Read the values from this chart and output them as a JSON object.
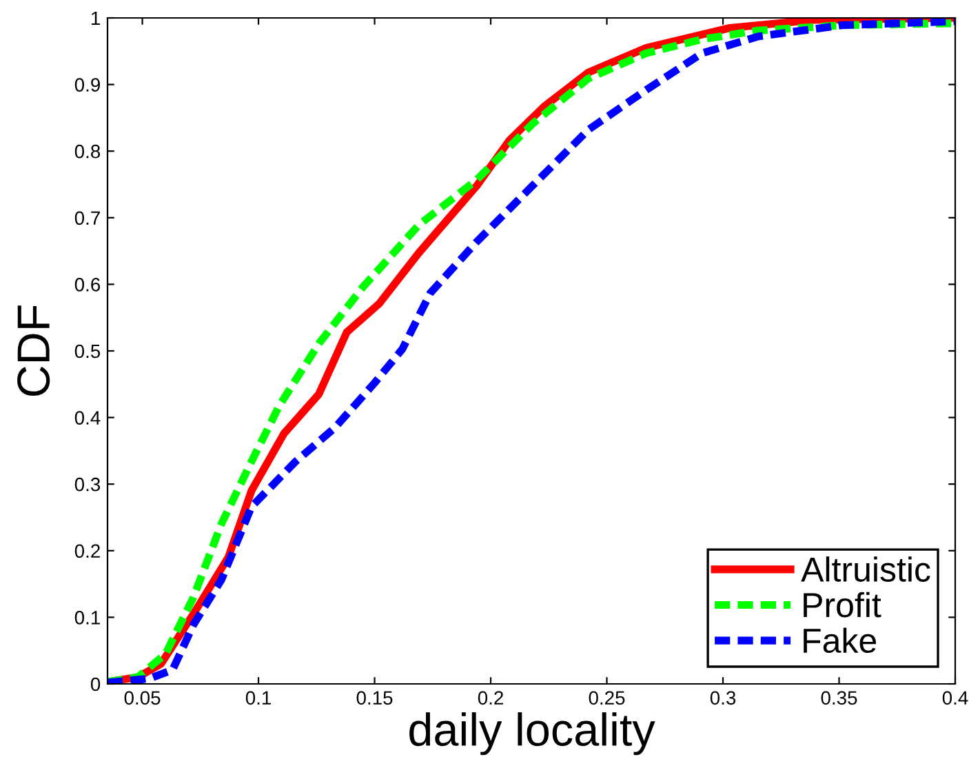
{
  "chart_data": {
    "type": "line",
    "xlabel": "daily locality",
    "ylabel": "CDF",
    "xlim": [
      0.035,
      0.4
    ],
    "xticks": [
      0.05,
      0.1,
      0.15,
      0.2,
      0.25,
      0.3,
      0.35,
      0.4
    ],
    "ylim": [
      0,
      1
    ],
    "yticks": [
      0,
      0.1,
      0.2,
      0.3,
      0.4,
      0.5,
      0.6,
      0.7,
      0.8,
      0.9,
      1
    ],
    "grid": false,
    "legend": "bottom right",
    "marker": "none",
    "series": [
      {
        "name": "Altruistic",
        "color": "#ff0000",
        "line_style": "solid",
        "x": [
          0.035,
          0.048,
          0.058,
          0.072,
          0.087,
          0.097,
          0.111,
          0.126,
          0.138,
          0.152,
          0.169,
          0.194,
          0.208,
          0.223,
          0.242,
          0.267,
          0.303,
          0.339,
          0.4
        ],
        "values": [
          0.003,
          0.01,
          0.03,
          0.105,
          0.19,
          0.29,
          0.376,
          0.435,
          0.528,
          0.571,
          0.647,
          0.748,
          0.816,
          0.867,
          0.918,
          0.955,
          0.985,
          0.997,
          1.0
        ]
      },
      {
        "name": "Profit",
        "color": "#00ff00",
        "line_style": "dashed",
        "x": [
          0.035,
          0.048,
          0.06,
          0.072,
          0.084,
          0.097,
          0.109,
          0.126,
          0.145,
          0.169,
          0.194,
          0.218,
          0.242,
          0.267,
          0.291,
          0.315,
          0.351,
          0.4
        ],
        "values": [
          0.003,
          0.01,
          0.045,
          0.13,
          0.24,
          0.334,
          0.418,
          0.511,
          0.596,
          0.689,
          0.757,
          0.841,
          0.909,
          0.947,
          0.968,
          0.981,
          0.989,
          0.992
        ]
      },
      {
        "name": "Fake",
        "color": "#0000ff",
        "line_style": "dashed",
        "x": [
          0.035,
          0.053,
          0.063,
          0.072,
          0.084,
          0.097,
          0.116,
          0.133,
          0.15,
          0.162,
          0.174,
          0.194,
          0.218,
          0.242,
          0.267,
          0.291,
          0.315,
          0.351,
          0.4
        ],
        "values": [
          0.002,
          0.008,
          0.021,
          0.089,
          0.156,
          0.266,
          0.334,
          0.385,
          0.452,
          0.503,
          0.587,
          0.664,
          0.748,
          0.832,
          0.892,
          0.947,
          0.972,
          0.989,
          0.995
        ]
      }
    ]
  }
}
